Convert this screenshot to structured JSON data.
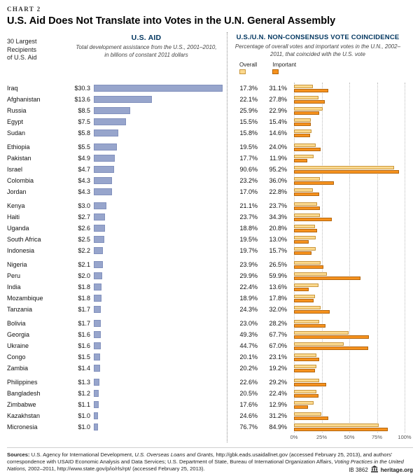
{
  "chart_label": "CHART 2",
  "title": "U.S. Aid Does Not Translate into Votes in the U.N. General Assembly",
  "left_header": "30 Largest\nRecipients\nof U.S. Aid",
  "aid_section": {
    "title": "U.S. AID",
    "subtitle": "Total development assistance from the U.S., 2001–2010, in billions of constant 2011 dollars"
  },
  "vote_section": {
    "title": "U.S./U.N. NON-CONSENSUS VOTE COINCIDENCE",
    "subtitle": "Percentage of overall votes and important votes in the U.N., 2002–2011, that coincided with the U.S. vote",
    "legend": {
      "overall": "Overall",
      "important": "Important"
    }
  },
  "chart_data": {
    "type": "bar",
    "orientation": "horizontal",
    "title": "U.S. Aid Does Not Translate into Votes in the U.N. General Assembly",
    "group_size": 5,
    "categories": [
      "Iraq",
      "Afghanistan",
      "Russia",
      "Egypt",
      "Sudan",
      "Ethiopia",
      "Pakistan",
      "Israel",
      "Colombia",
      "Jordan",
      "Kenya",
      "Haiti",
      "Uganda",
      "South Africa",
      "Indonesia",
      "Nigeria",
      "Peru",
      "India",
      "Mozambique",
      "Tanzania",
      "Bolivia",
      "Georgia",
      "Ukraine",
      "Congo",
      "Zambia",
      "Philippines",
      "Bangladesh",
      "Zimbabwe",
      "Kazakhstan",
      "Micronesia"
    ],
    "series": [
      {
        "name": "U.S. Aid (billions of constant 2011 dollars)",
        "axis_max": 30.3,
        "values": [
          30.3,
          13.6,
          8.5,
          7.5,
          5.8,
          5.5,
          4.9,
          4.7,
          4.3,
          4.3,
          3.0,
          2.7,
          2.6,
          2.5,
          2.2,
          2.1,
          2.0,
          1.8,
          1.8,
          1.7,
          1.7,
          1.6,
          1.6,
          1.5,
          1.4,
          1.3,
          1.2,
          1.1,
          1.0,
          1.0
        ],
        "labels": [
          "$30.3",
          "$13.6",
          "$8.5",
          "$7.5",
          "$5.8",
          "$5.5",
          "$4.9",
          "$4.7",
          "$4.3",
          "$4.3",
          "$3.0",
          "$2.7",
          "$2.6",
          "$2.5",
          "$2.2",
          "$2.1",
          "$2.0",
          "$1.8",
          "$1.8",
          "$1.7",
          "$1.7",
          "$1.6",
          "$1.6",
          "$1.5",
          "$1.4",
          "$1.3",
          "$1.2",
          "$1.1",
          "$1.0",
          "$1.0"
        ]
      },
      {
        "name": "Overall",
        "values": [
          17.3,
          22.1,
          25.9,
          15.5,
          15.8,
          19.5,
          17.7,
          90.6,
          23.2,
          17.0,
          21.1,
          23.7,
          18.8,
          19.5,
          19.7,
          23.9,
          29.9,
          22.4,
          18.9,
          24.3,
          23.0,
          49.3,
          44.7,
          20.1,
          20.2,
          22.6,
          20.5,
          17.6,
          24.6,
          76.7
        ],
        "labels": [
          "17.3%",
          "22.1%",
          "25.9%",
          "15.5%",
          "15.8%",
          "19.5%",
          "17.7%",
          "90.6%",
          "23.2%",
          "17.0%",
          "21.1%",
          "23.7%",
          "18.8%",
          "19.5%",
          "19.7%",
          "23.9%",
          "29.9%",
          "22.4%",
          "18.9%",
          "24.3%",
          "23.0%",
          "49.3%",
          "44.7%",
          "20.1%",
          "20.2%",
          "22.6%",
          "20.5%",
          "17.6%",
          "24.6%",
          "76.7%"
        ]
      },
      {
        "name": "Important",
        "values": [
          31.1,
          27.8,
          22.9,
          15.4,
          14.6,
          24.0,
          11.9,
          95.2,
          36.0,
          22.8,
          23.7,
          34.3,
          20.8,
          13.0,
          15.7,
          26.5,
          59.9,
          13.6,
          17.8,
          32.0,
          28.2,
          67.7,
          67.0,
          23.1,
          19.2,
          29.2,
          22.4,
          12.9,
          31.2,
          84.9
        ],
        "labels": [
          "31.1%",
          "27.8%",
          "22.9%",
          "15.4%",
          "14.6%",
          "24.0%",
          "11.9%",
          "95.2%",
          "36.0%",
          "22.8%",
          "23.7%",
          "34.3%",
          "20.8%",
          "13.0%",
          "15.7%",
          "26.5%",
          "59.9%",
          "13.6%",
          "17.8%",
          "32.0%",
          "28.2%",
          "67.7%",
          "67.0%",
          "23.1%",
          "19.2%",
          "29.2%",
          "22.4%",
          "12.9%",
          "31.2%",
          "84.9%"
        ]
      }
    ],
    "vote_axis": {
      "range": [
        0,
        100
      ],
      "tick_values": [
        0,
        25,
        50,
        75,
        100
      ],
      "ticks": [
        "0%",
        "25%",
        "50%",
        "75%",
        "100%"
      ]
    }
  },
  "colors": {
    "aid_bar": "#97a5cc",
    "aid_bar_border": "#8291bd",
    "overall_fill": "#fbd98e",
    "overall_border": "#c9973e",
    "important_fill": "#f6921e",
    "important_border": "#b3660f",
    "section_title": "#00355f"
  },
  "sources": {
    "label": "Sources:",
    "text_1": " U.S. Agency for International Development, ",
    "italic_1": "U.S. Overseas Loans and Grants,",
    "text_2": " http://gbk.eads.usaidallnet.gov (accessed February 25, 2013), and authors’ correspondence with USAID Economic Analysis and Data Services; U.S. Department of State, Bureau of International Organization Affairs, ",
    "italic_2": "Voting Practices in the United Nations,",
    "text_3": " 2002–2011, http://www.state.gov/p/io/rls/rpt/ (accessed February 25, 2013)."
  },
  "footer": {
    "report_id": "IB 3862",
    "site": "heritage.org"
  }
}
